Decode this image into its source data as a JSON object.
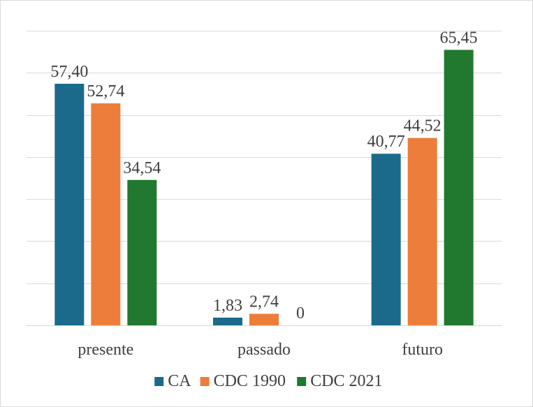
{
  "chart_data": {
    "type": "bar",
    "categories": [
      "presente",
      "passado",
      "futuro"
    ],
    "series": [
      {
        "name": "CA",
        "values": [
          57.4,
          1.83,
          40.77
        ],
        "labels": [
          "57,40",
          "1,83",
          "40,77"
        ],
        "color": "#1b6a8c"
      },
      {
        "name": "CDC 1990",
        "values": [
          52.74,
          2.74,
          44.52
        ],
        "labels": [
          "52,74",
          "2,74",
          "44,52"
        ],
        "color": "#ed7d3a"
      },
      {
        "name": "CDC 2021",
        "values": [
          34.54,
          0,
          65.45
        ],
        "labels": [
          "34,54",
          "0",
          "65,45"
        ],
        "color": "#21782f"
      }
    ],
    "title": "",
    "xlabel": "",
    "ylabel": "",
    "ylim": [
      0,
      70
    ],
    "grid": true,
    "legend_position": "bottom"
  }
}
